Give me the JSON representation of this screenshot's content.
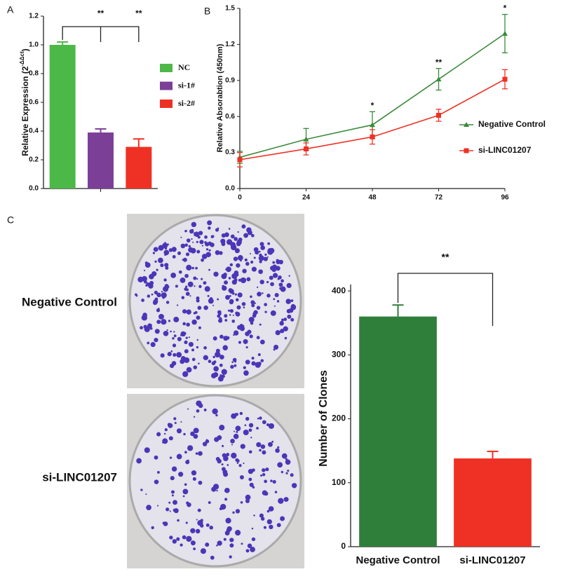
{
  "panel_labels": [
    "A",
    "B",
    "C"
  ],
  "plate_labels": [
    "Negative Control",
    "si-LINC01207"
  ],
  "chart_data": [
    {
      "type": "bar",
      "y_label_parts": [
        "Relative Expression (2",
        "-ΔΔct",
        ")"
      ],
      "categories": [
        "NC",
        "si-1#",
        "si-2#"
      ],
      "values": [
        1.0,
        0.39,
        0.29
      ],
      "errors": [
        0.02,
        0.025,
        0.055
      ],
      "colors": [
        "#4cb848",
        "#7b3f98",
        "#ee3124"
      ],
      "ylim": [
        0,
        1.2
      ],
      "yticks": [
        {
          "value": 0,
          "label": "0.0"
        },
        0.2,
        0.4,
        0.6,
        0.8,
        {
          "value": 1,
          "label": "1.0"
        },
        1.2
      ],
      "annotations": [
        "**",
        "**"
      ],
      "legend": "right"
    },
    {
      "type": "line",
      "y_label": "Relative Absorabtion (450nm)",
      "x": [
        0,
        24,
        48,
        72,
        96
      ],
      "xlim": [
        0,
        96
      ],
      "xticks": [
        0,
        24,
        48,
        72,
        96
      ],
      "ylim": [
        0,
        1.5
      ],
      "yticks": [
        {
          "value": 0,
          "label": "0.0"
        },
        0.3,
        0.6,
        0.9,
        1.2,
        1.5
      ],
      "series": [
        {
          "name": "Negative Control",
          "color": "#3a8a3a",
          "marker": "triangle",
          "values": [
            0.26,
            0.41,
            0.53,
            0.91,
            1.29
          ],
          "errors": [
            0.05,
            0.09,
            0.11,
            0.09,
            0.16
          ]
        },
        {
          "name": "si-LINC01207",
          "color": "#ee3124",
          "marker": "square",
          "values": [
            0.24,
            0.33,
            0.43,
            0.61,
            0.91
          ],
          "errors": [
            0.06,
            0.05,
            0.06,
            0.05,
            0.08
          ]
        }
      ],
      "annotations": [
        {
          "x": 48,
          "text": "*"
        },
        {
          "x": 72,
          "text": "**"
        },
        {
          "x": 96,
          "text": "*"
        }
      ],
      "legend": "right"
    },
    {
      "type": "bar",
      "y_label": "Number of Clones",
      "categories": [
        "Negative Control",
        "si-LINC01207"
      ],
      "values": [
        360,
        138
      ],
      "errors": [
        18,
        11
      ],
      "colors": [
        "#2f7f3a",
        "#ee3124"
      ],
      "ylim": [
        0,
        410
      ],
      "yticks": [
        0,
        100,
        200,
        300,
        400
      ],
      "annotations": [
        "**"
      ]
    }
  ]
}
